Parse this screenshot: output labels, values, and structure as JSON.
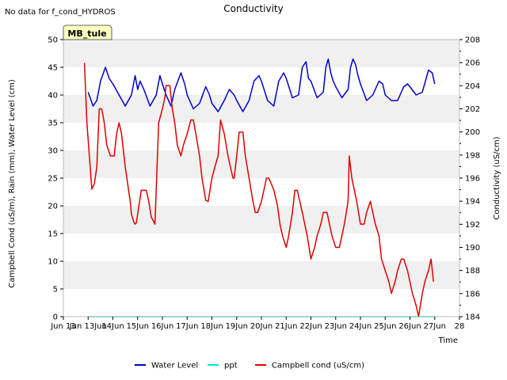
{
  "note_text": "No data for f_cond_HYDROS",
  "chart_data": {
    "type": "line",
    "title": "Conductivity",
    "xlabel": "Time",
    "ylabel_left": "Campbell Cond (uS/m), Rain (mm), Water Level (cm)",
    "ylabel_right": "Conductivity (uS/cm)",
    "station_label": "MB_tule",
    "xlim": [
      12,
      28
    ],
    "x_ticks": [
      12,
      13,
      14,
      15,
      16,
      17,
      18,
      19,
      20,
      21,
      22,
      23,
      24,
      25,
      26,
      27,
      28
    ],
    "x_tick_labels": [
      "Jun 13",
      "Jun 13Jun",
      "14Jun",
      "15Jun",
      "16Jun",
      "17Jun",
      "18Jun",
      "19Jun",
      "20Jun",
      "21Jun",
      "22Jun",
      "23Jun",
      "24Jun",
      "25Jun",
      "26Jun",
      "27Jun",
      "28"
    ],
    "ylim_left": [
      0,
      50
    ],
    "y_ticks_left": [
      0,
      5,
      10,
      15,
      20,
      25,
      30,
      35,
      40,
      45,
      50
    ],
    "ylim_right": [
      184,
      208
    ],
    "y_ticks_right": [
      184,
      186,
      188,
      190,
      192,
      194,
      196,
      198,
      200,
      202,
      204,
      206,
      208
    ],
    "grid": false,
    "band_shading": true,
    "legend_position": "bottom-center",
    "series": [
      {
        "name": "Water Level",
        "color": "#0000cc",
        "axis": "left",
        "x": [
          13.0,
          13.2,
          13.35,
          13.5,
          13.7,
          13.85,
          14.0,
          14.25,
          14.5,
          14.75,
          14.9,
          15.0,
          15.1,
          15.25,
          15.5,
          15.75,
          15.9,
          16.0,
          16.15,
          16.35,
          16.5,
          16.75,
          16.9,
          17.0,
          17.25,
          17.5,
          17.75,
          17.9,
          18.0,
          18.25,
          18.5,
          18.7,
          18.9,
          19.0,
          19.25,
          19.5,
          19.7,
          19.9,
          20.0,
          20.25,
          20.5,
          20.7,
          20.9,
          21.0,
          21.25,
          21.5,
          21.65,
          21.8,
          21.9,
          22.0,
          22.25,
          22.5,
          22.6,
          22.7,
          22.8,
          22.9,
          23.0,
          23.25,
          23.5,
          23.6,
          23.7,
          23.8,
          23.9,
          24.0,
          24.25,
          24.5,
          24.75,
          24.9,
          25.0,
          25.25,
          25.5,
          25.75,
          25.9,
          26.0,
          26.25,
          26.5,
          26.75,
          26.9,
          27.0
        ],
        "y": [
          40.5,
          38.0,
          39.0,
          42.5,
          45.0,
          43.0,
          42.0,
          40.0,
          38.0,
          40.0,
          43.5,
          41.0,
          42.5,
          41.0,
          38.0,
          40.0,
          43.5,
          42.0,
          40.0,
          38.0,
          41.0,
          44.0,
          42.0,
          40.0,
          37.5,
          38.5,
          41.5,
          40.0,
          38.5,
          37.0,
          39.0,
          41.0,
          40.0,
          39.0,
          37.0,
          39.0,
          42.5,
          43.5,
          42.5,
          39.0,
          38.0,
          42.5,
          44.0,
          43.0,
          39.5,
          40.0,
          45.0,
          46.0,
          43.0,
          42.5,
          39.5,
          40.5,
          45.0,
          46.5,
          44.0,
          42.5,
          41.5,
          39.5,
          41.0,
          45.0,
          46.5,
          45.5,
          43.5,
          42.0,
          39.0,
          40.0,
          42.5,
          42.0,
          40.0,
          39.0,
          39.0,
          41.5,
          42.0,
          41.5,
          40.0,
          40.5,
          44.5,
          44.0,
          42.0
        ]
      },
      {
        "name": "ppt",
        "color": "#00e5e5",
        "axis": "left",
        "x": [
          13.0,
          27.0
        ],
        "y": [
          0,
          0
        ]
      },
      {
        "name": "Campbell cond (uS/cm)",
        "color": "#e00000",
        "axis": "left",
        "x": [
          12.85,
          12.95,
          13.05,
          13.15,
          13.25,
          13.35,
          13.45,
          13.55,
          13.65,
          13.75,
          13.9,
          14.05,
          14.15,
          14.25,
          14.35,
          14.5,
          14.7,
          14.75,
          14.85,
          14.9,
          14.95,
          15.05,
          15.15,
          15.25,
          15.35,
          15.45,
          15.55,
          15.7,
          15.85,
          16.0,
          16.1,
          16.15,
          16.2,
          16.3,
          16.4,
          16.5,
          16.6,
          16.75,
          16.85,
          17.0,
          17.15,
          17.25,
          17.35,
          17.5,
          17.6,
          17.75,
          17.85,
          18.0,
          18.15,
          18.25,
          18.35,
          18.5,
          18.65,
          18.75,
          18.85,
          18.9,
          19.0,
          19.1,
          19.25,
          19.35,
          19.5,
          19.65,
          19.75,
          19.85,
          20.0,
          20.1,
          20.2,
          20.3,
          20.5,
          20.65,
          20.75,
          20.85,
          21.0,
          21.1,
          21.25,
          21.35,
          21.45,
          21.55,
          21.65,
          21.75,
          21.85,
          22.0,
          22.15,
          22.25,
          22.4,
          22.5,
          22.65,
          22.75,
          22.85,
          23.0,
          23.15,
          23.25,
          23.35,
          23.5,
          23.55,
          23.65,
          23.75,
          23.85,
          24.0,
          24.15,
          24.25,
          24.4,
          24.5,
          24.6,
          24.75,
          24.85,
          25.0,
          25.15,
          25.25,
          25.4,
          25.5,
          25.65,
          25.75,
          25.9,
          26.0,
          26.1,
          26.25,
          26.35,
          26.5,
          26.6,
          26.75,
          26.85,
          26.95
        ],
        "y": [
          45.8,
          35.0,
          29.0,
          23.0,
          24.0,
          27.0,
          37.5,
          37.5,
          35.0,
          31.0,
          29.0,
          29.0,
          33.0,
          35.0,
          33.0,
          27.0,
          20.8,
          18.5,
          17.0,
          16.7,
          17.0,
          20.0,
          22.8,
          22.8,
          22.8,
          20.8,
          18.0,
          16.7,
          35.0,
          37.5,
          39.5,
          41.7,
          41.7,
          41.7,
          37.5,
          35.0,
          31.0,
          29.0,
          31.0,
          33.0,
          35.5,
          35.5,
          33.0,
          29.0,
          25.0,
          21.0,
          20.8,
          25.0,
          27.5,
          29.0,
          35.5,
          33.0,
          29.0,
          27.0,
          25.0,
          25.0,
          29.0,
          33.3,
          33.3,
          29.0,
          25.0,
          21.0,
          18.8,
          18.8,
          20.8,
          22.8,
          25.0,
          25.0,
          22.9,
          20.0,
          16.7,
          14.6,
          12.5,
          14.6,
          18.8,
          22.8,
          22.8,
          20.8,
          18.8,
          16.7,
          14.6,
          10.4,
          12.5,
          14.6,
          16.7,
          18.8,
          18.8,
          16.7,
          14.6,
          12.5,
          12.5,
          14.6,
          16.7,
          20.8,
          29.0,
          25.0,
          22.9,
          20.8,
          16.7,
          16.7,
          18.8,
          20.8,
          18.8,
          16.7,
          14.6,
          10.4,
          8.3,
          6.3,
          4.2,
          6.3,
          8.3,
          10.4,
          10.4,
          8.3,
          6.3,
          4.2,
          2.0,
          0.0,
          4.2,
          6.3,
          8.3,
          10.4,
          6.3
        ]
      }
    ]
  }
}
